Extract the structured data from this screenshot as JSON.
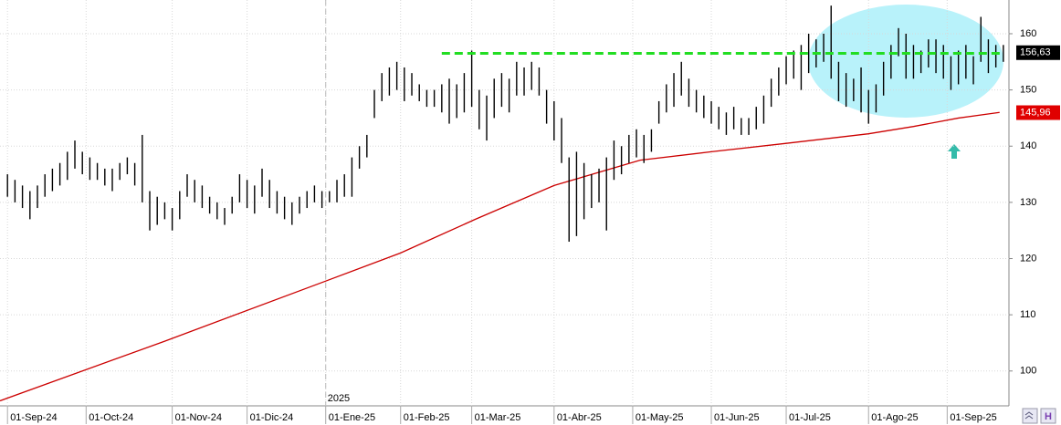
{
  "chart_data": {
    "type": "ohlc",
    "xlim": [
      -2,
      267.5
    ],
    "ylim": [
      93.8,
      166
    ],
    "yticks": [
      100,
      110,
      120,
      130,
      140,
      150,
      160
    ],
    "xticks": [
      {
        "value": 0,
        "label": "01-Sep-24"
      },
      {
        "value": 21,
        "label": "01-Oct-24"
      },
      {
        "value": 44,
        "label": "01-Nov-24"
      },
      {
        "value": 64,
        "label": "01-Dic-24"
      },
      {
        "value": 85,
        "label": "01-Ene-25"
      },
      {
        "value": 105,
        "label": "01-Feb-25"
      },
      {
        "value": 124,
        "label": "01-Mar-25"
      },
      {
        "value": 146,
        "label": "01-Abr-25"
      },
      {
        "value": 167,
        "label": "01-May-25"
      },
      {
        "value": 188,
        "label": "01-Jun-25"
      },
      {
        "value": 208,
        "label": "01-Jul-25"
      },
      {
        "value": 230,
        "label": "01-Ago-25"
      },
      {
        "value": 251,
        "label": "01-Sep-25"
      }
    ],
    "year_label": {
      "value": 85,
      "label": "2025"
    },
    "grid": true,
    "bars": {
      "color": "#000000",
      "x": [
        0,
        2,
        4,
        6,
        8,
        10,
        12,
        14,
        16,
        18,
        20,
        22,
        24,
        26,
        28,
        30,
        32,
        34,
        36,
        38,
        40,
        42,
        44,
        46,
        48,
        50,
        52,
        54,
        56,
        58,
        60,
        62,
        64,
        66,
        68,
        70,
        72,
        74,
        76,
        78,
        80,
        82,
        84,
        86,
        88,
        90,
        92,
        94,
        96,
        98,
        100,
        102,
        104,
        106,
        108,
        110,
        112,
        114,
        116,
        118,
        120,
        122,
        124,
        126,
        128,
        130,
        132,
        134,
        136,
        138,
        140,
        142,
        144,
        146,
        148,
        150,
        152,
        154,
        156,
        158,
        160,
        162,
        164,
        166,
        168,
        170,
        172,
        174,
        176,
        178,
        180,
        182,
        184,
        186,
        188,
        190,
        192,
        194,
        196,
        198,
        200,
        202,
        204,
        206,
        208,
        210,
        212,
        214,
        216,
        218,
        220,
        222,
        224,
        226,
        228,
        230,
        232,
        234,
        236,
        238,
        240,
        242,
        244,
        246,
        248,
        250,
        252,
        254,
        256,
        258,
        260,
        262,
        264,
        266
      ],
      "high": [
        135,
        134,
        133,
        132,
        133,
        135,
        136,
        137,
        139,
        141,
        139,
        138,
        137,
        136,
        136,
        137,
        138,
        137,
        142,
        132,
        131,
        130,
        129,
        132,
        135,
        134,
        133,
        131,
        130,
        129,
        131,
        135,
        134,
        133,
        136,
        134,
        132,
        131,
        130,
        131,
        132,
        133,
        132,
        132,
        134,
        135,
        138,
        140,
        142,
        150,
        153,
        154,
        155,
        154,
        153,
        151,
        150,
        150,
        151,
        152,
        151,
        153,
        157,
        150,
        149,
        152,
        153,
        152,
        155,
        154,
        155,
        154,
        150,
        148,
        145,
        138,
        139,
        137,
        135,
        136,
        138,
        141,
        140,
        142,
        143,
        142,
        143,
        148,
        151,
        153,
        155,
        152,
        150,
        149,
        148,
        147,
        146,
        147,
        145,
        145,
        147,
        149,
        152,
        154,
        156,
        157,
        158,
        160,
        159,
        160,
        165,
        155,
        153,
        152,
        154,
        150,
        151,
        155,
        158,
        161,
        160,
        158,
        157,
        159,
        159,
        158,
        156,
        157,
        158,
        156,
        163,
        159,
        158,
        158
      ],
      "low": [
        131,
        130,
        129,
        127,
        129,
        131,
        132,
        133,
        134,
        136,
        135,
        134,
        134,
        133,
        132,
        134,
        135,
        133,
        130,
        125,
        126,
        127,
        125,
        127,
        131,
        130,
        129,
        128,
        127,
        126,
        128,
        130,
        129,
        128,
        131,
        129,
        128,
        127,
        126,
        128,
        129,
        130,
        129,
        130,
        130,
        131,
        131,
        136,
        138,
        145,
        148,
        149,
        150,
        148,
        149,
        148,
        147,
        147,
        146,
        144,
        145,
        146,
        147,
        143,
        141,
        145,
        147,
        146,
        149,
        149,
        150,
        149,
        144,
        141,
        137,
        123,
        124,
        127,
        129,
        130,
        125,
        134,
        135,
        137,
        138,
        137,
        139,
        144,
        146,
        147,
        149,
        147,
        146,
        145,
        144,
        143,
        142,
        143,
        142,
        142,
        143,
        144,
        147,
        149,
        151,
        152,
        150,
        153,
        154,
        155,
        152,
        148,
        147,
        148,
        146,
        144,
        146,
        149,
        152,
        156,
        152,
        152,
        153,
        154,
        153,
        152,
        150,
        151,
        152,
        151,
        155,
        153,
        154,
        155
      ]
    },
    "ma": {
      "color": "#cc0000",
      "x": [
        -2,
        42,
        85,
        105,
        125,
        146,
        169,
        188,
        208,
        230,
        242,
        254,
        265
      ],
      "values": [
        94.7,
        105.3,
        116,
        121,
        127,
        133,
        137.5,
        139,
        140.5,
        142.2,
        143.5,
        145,
        146
      ]
    },
    "ref_line": {
      "value": 156.5,
      "from": 116,
      "to": 266,
      "color": "#22dd22"
    },
    "price_labels": [
      {
        "value": 156.63,
        "label": "156,63",
        "color": "#000000"
      },
      {
        "value": 145.96,
        "label": "145,96",
        "color": "#e00000"
      }
    ]
  }
}
